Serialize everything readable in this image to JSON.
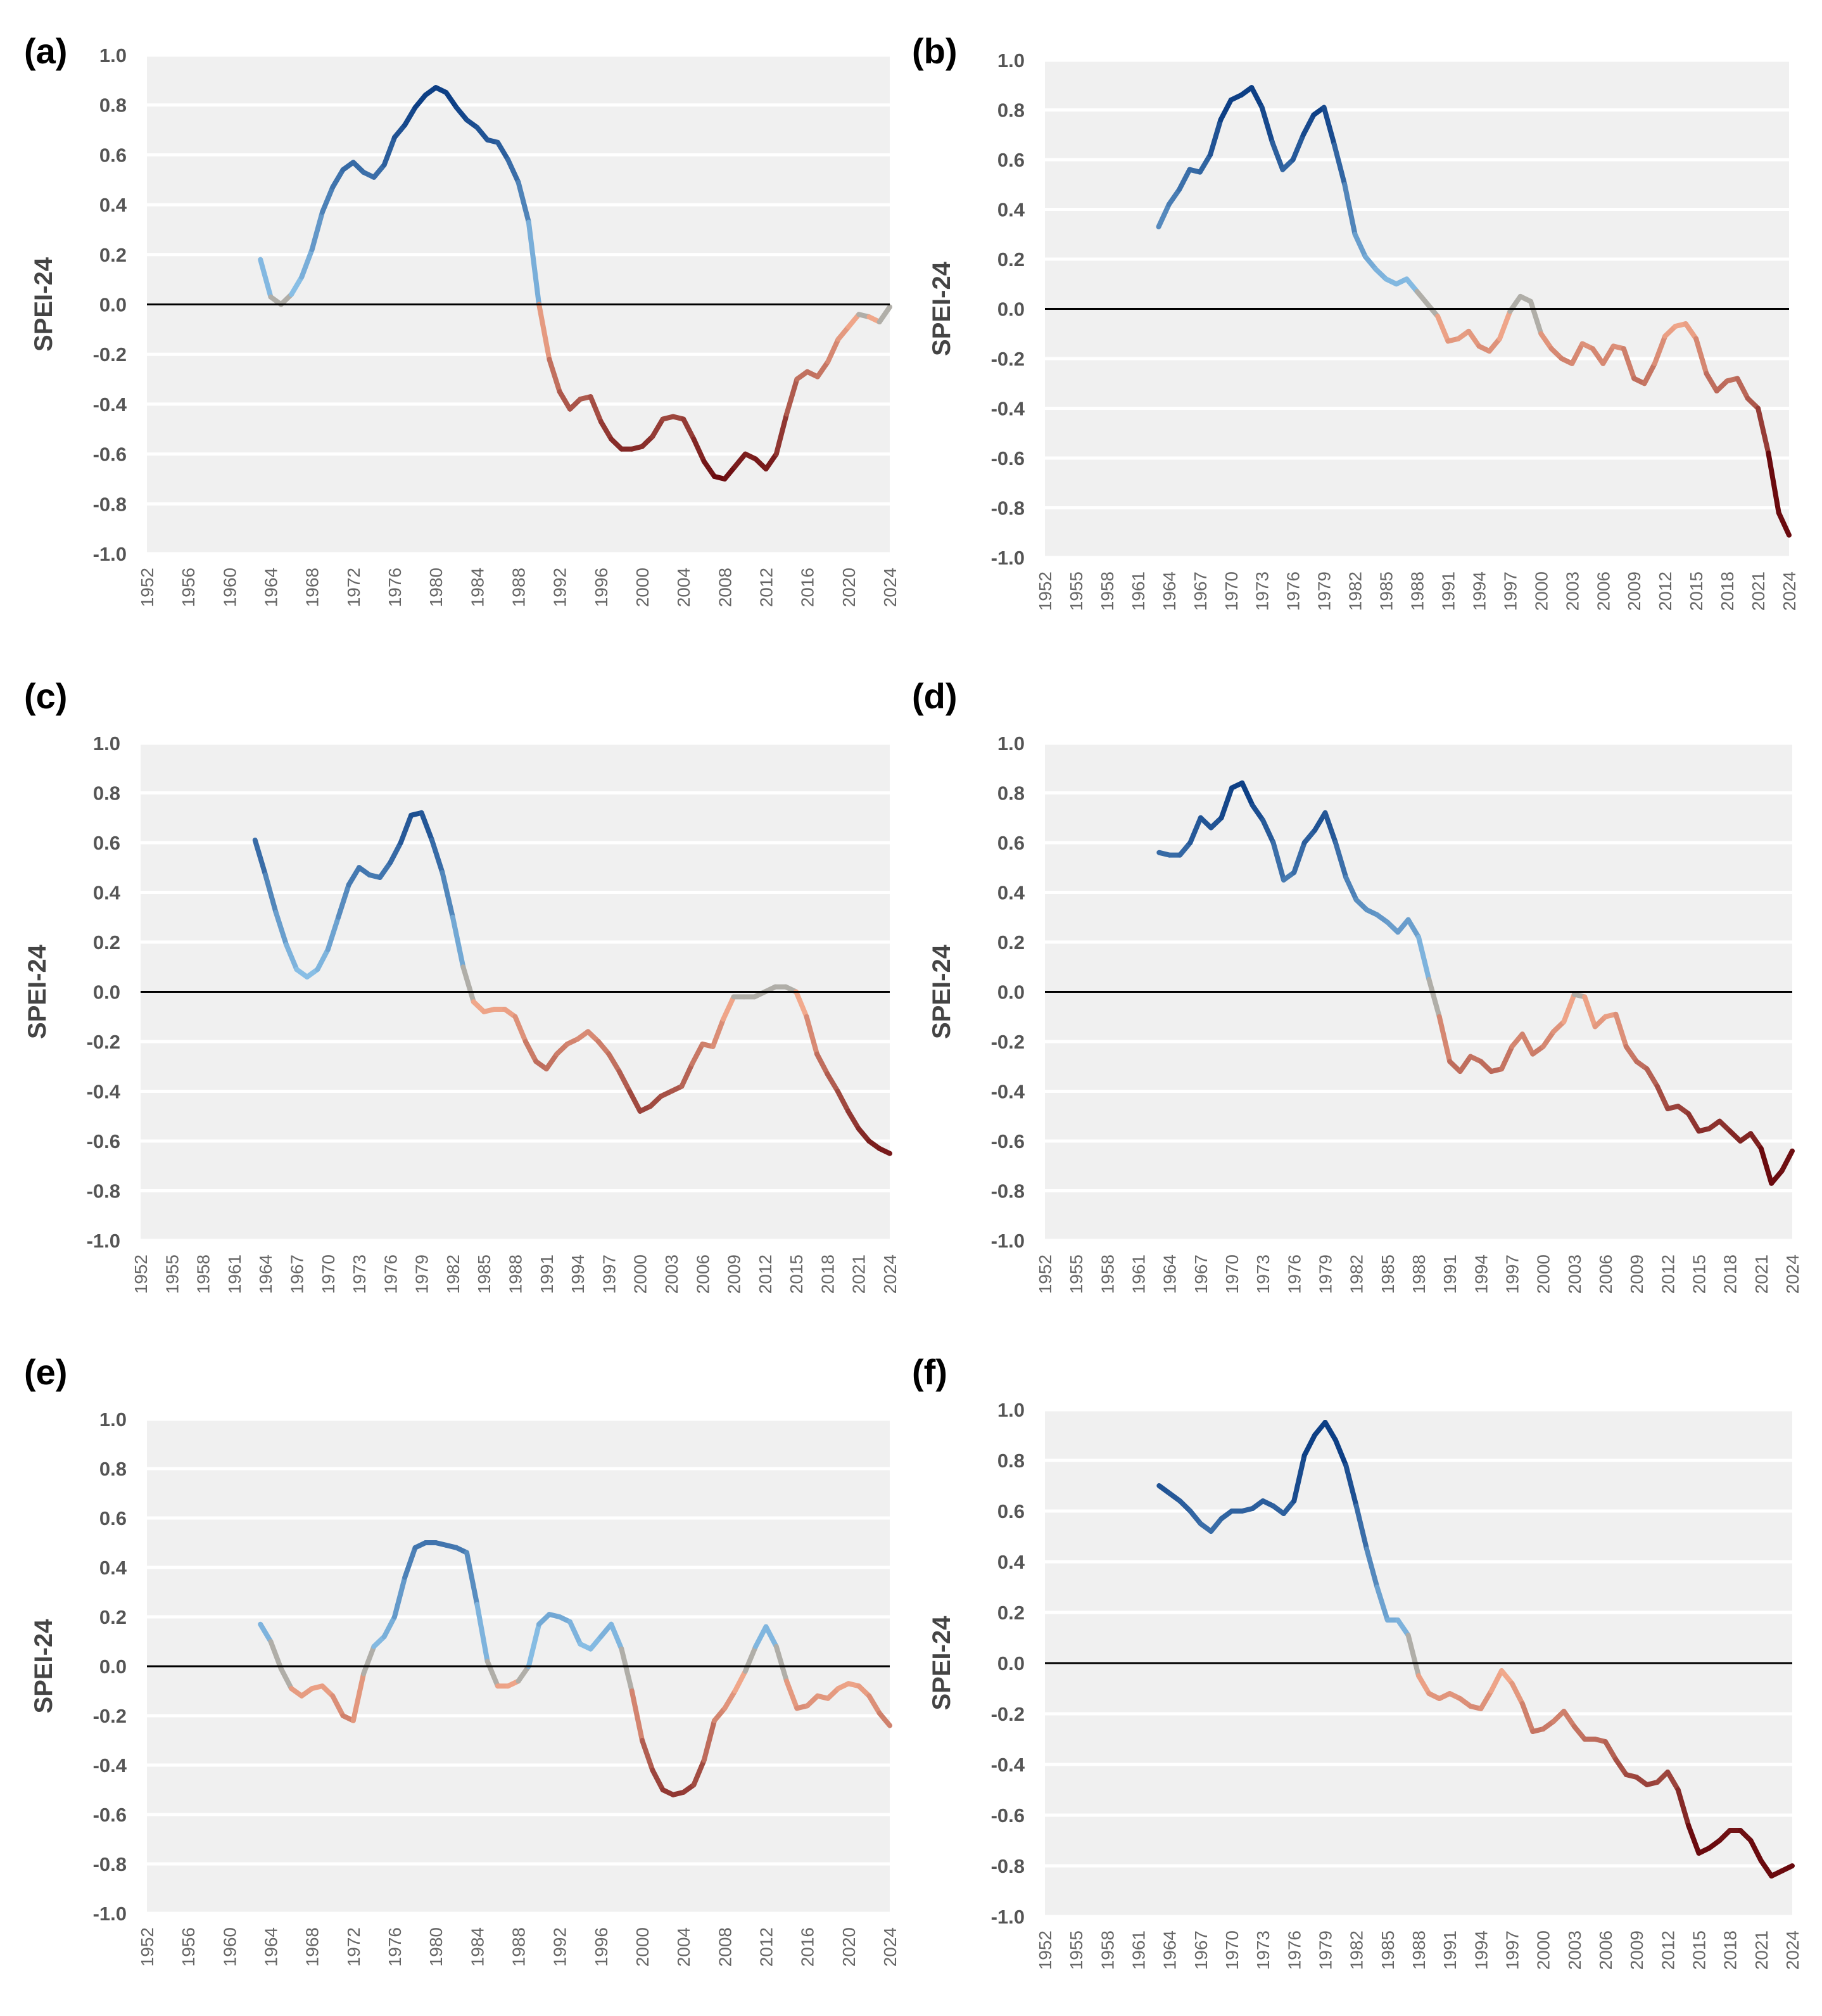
{
  "figure": {
    "panels": [
      {
        "label": "(a)",
        "ylabel": "SPEI-24"
      },
      {
        "label": "(b)",
        "ylabel": "SPEI-24"
      },
      {
        "label": "(c)",
        "ylabel": "SPEI-24"
      },
      {
        "label": "(d)",
        "ylabel": "SPEI-24"
      },
      {
        "label": "(e)",
        "ylabel": "SPEI-24"
      },
      {
        "label": "(f)",
        "ylabel": "SPEI-24"
      }
    ]
  },
  "colors": {
    "background": "#f0f0f0",
    "gridline": "#ffffff",
    "zero_line": "#000000",
    "wet_dark": "#0d3f85",
    "wet_light": "#8cc2e8",
    "neutral": "#b0aea8",
    "dry_light": "#f2a98c",
    "dry_dark": "#6a0a0e"
  },
  "chart_data": [
    {
      "type": "line",
      "panel": "(a)",
      "ylabel": "SPEI-24",
      "ylim": [
        -1.0,
        1.0
      ],
      "yticks": [
        "1.0",
        "0.8",
        "0.6",
        "0.4",
        "0.2",
        "0.0",
        "-0.2",
        "-0.4",
        "-0.6",
        "-0.8",
        "-1.0"
      ],
      "xlim": [
        1952,
        2024
      ],
      "xticks": [
        "1952",
        "1956",
        "1960",
        "1964",
        "1968",
        "1972",
        "1976",
        "1980",
        "1984",
        "1988",
        "1992",
        "1996",
        "2000",
        "2004",
        "2008",
        "2012",
        "2016",
        "2020",
        "2024"
      ],
      "grid": true,
      "x": [
        1963,
        1964,
        1965,
        1966,
        1967,
        1968,
        1969,
        1970,
        1971,
        1972,
        1973,
        1974,
        1975,
        1976,
        1977,
        1978,
        1979,
        1980,
        1981,
        1982,
        1983,
        1984,
        1985,
        1986,
        1987,
        1988,
        1989,
        1990,
        1991,
        1992,
        1993,
        1994,
        1995,
        1996,
        1997,
        1998,
        1999,
        2000,
        2001,
        2002,
        2003,
        2004,
        2005,
        2006,
        2007,
        2008,
        2009,
        2010,
        2011,
        2012,
        2013,
        2014,
        2015,
        2016,
        2017,
        2018,
        2019,
        2020,
        2021,
        2022,
        2023,
        2024
      ],
      "y": [
        0.18,
        0.03,
        0.0,
        0.04,
        0.11,
        0.22,
        0.37,
        0.47,
        0.54,
        0.57,
        0.53,
        0.51,
        0.56,
        0.67,
        0.72,
        0.79,
        0.84,
        0.87,
        0.85,
        0.79,
        0.74,
        0.71,
        0.66,
        0.65,
        0.58,
        0.49,
        0.33,
        0.0,
        -0.22,
        -0.35,
        -0.42,
        -0.38,
        -0.37,
        -0.47,
        -0.54,
        -0.58,
        -0.58,
        -0.57,
        -0.53,
        -0.46,
        -0.45,
        -0.46,
        -0.54,
        -0.63,
        -0.69,
        -0.7,
        -0.65,
        -0.6,
        -0.62,
        -0.66,
        -0.6,
        -0.44,
        -0.3,
        -0.27,
        -0.29,
        -0.23,
        -0.14,
        -0.09,
        -0.04,
        -0.05,
        -0.07,
        -0.01
      ]
    },
    {
      "type": "line",
      "panel": "(b)",
      "ylabel": "SPEI-24",
      "ylim": [
        -1.0,
        1.0
      ],
      "yticks": [
        "1.0",
        "0.8",
        "0.6",
        "0.4",
        "0.2",
        "0.0",
        "-0.2",
        "-0.4",
        "-0.6",
        "-0.8",
        "-1.0"
      ],
      "xlim": [
        1952,
        2024
      ],
      "xticks": [
        "1952",
        "1955",
        "1958",
        "1961",
        "1964",
        "1967",
        "1970",
        "1973",
        "1976",
        "1979",
        "1982",
        "1985",
        "1988",
        "1991",
        "1994",
        "1997",
        "2000",
        "2003",
        "2006",
        "2009",
        "2012",
        "2015",
        "2018",
        "2021",
        "2024"
      ],
      "grid": true,
      "x": [
        1963,
        1964,
        1965,
        1966,
        1967,
        1968,
        1969,
        1970,
        1971,
        1972,
        1973,
        1974,
        1975,
        1976,
        1977,
        1978,
        1979,
        1980,
        1981,
        1982,
        1983,
        1984,
        1985,
        1986,
        1987,
        1988,
        1989,
        1990,
        1991,
        1992,
        1993,
        1994,
        1995,
        1996,
        1997,
        1998,
        1999,
        2000,
        2001,
        2002,
        2003,
        2004,
        2005,
        2006,
        2007,
        2008,
        2009,
        2010,
        2011,
        2012,
        2013,
        2014,
        2015,
        2016,
        2017,
        2018,
        2019,
        2020,
        2021,
        2022,
        2023,
        2024
      ],
      "y": [
        0.33,
        0.42,
        0.48,
        0.56,
        0.55,
        0.62,
        0.76,
        0.84,
        0.86,
        0.89,
        0.81,
        0.67,
        0.56,
        0.6,
        0.7,
        0.78,
        0.81,
        0.66,
        0.5,
        0.3,
        0.21,
        0.16,
        0.12,
        0.1,
        0.12,
        0.07,
        0.02,
        -0.03,
        -0.13,
        -0.12,
        -0.09,
        -0.15,
        -0.17,
        -0.12,
        -0.01,
        0.05,
        0.03,
        -0.1,
        -0.16,
        -0.2,
        -0.22,
        -0.14,
        -0.16,
        -0.22,
        -0.15,
        -0.16,
        -0.28,
        -0.3,
        -0.22,
        -0.11,
        -0.07,
        -0.06,
        -0.12,
        -0.26,
        -0.33,
        -0.29,
        -0.28,
        -0.36,
        -0.4,
        -0.58,
        -0.82,
        -0.91
      ]
    },
    {
      "type": "line",
      "panel": "(c)",
      "ylabel": "SPEI-24",
      "ylim": [
        -1.0,
        1.0
      ],
      "yticks": [
        "1.0",
        "0.8",
        "0.6",
        "0.4",
        "0.2",
        "0.0",
        "-0.2",
        "-0.4",
        "-0.6",
        "-0.8",
        "-1.0"
      ],
      "xlim": [
        1952,
        2024
      ],
      "xticks": [
        "1952",
        "1955",
        "1958",
        "1961",
        "1964",
        "1967",
        "1970",
        "1973",
        "1976",
        "1979",
        "1982",
        "1985",
        "1988",
        "1991",
        "1994",
        "1997",
        "2000",
        "2003",
        "2006",
        "2009",
        "2012",
        "2015",
        "2018",
        "2021",
        "2024"
      ],
      "grid": true,
      "x": [
        1963,
        1964,
        1965,
        1966,
        1967,
        1968,
        1969,
        1970,
        1971,
        1972,
        1973,
        1974,
        1975,
        1976,
        1977,
        1978,
        1979,
        1980,
        1981,
        1982,
        1983,
        1984,
        1985,
        1986,
        1987,
        1988,
        1989,
        1990,
        1991,
        1992,
        1993,
        1994,
        1995,
        1996,
        1997,
        1998,
        1999,
        2000,
        2001,
        2002,
        2003,
        2004,
        2005,
        2006,
        2007,
        2008,
        2009,
        2010,
        2011,
        2012,
        2013,
        2014,
        2015,
        2016,
        2017,
        2018,
        2019,
        2020,
        2021,
        2022,
        2023,
        2024
      ],
      "y": [
        0.61,
        0.47,
        0.32,
        0.19,
        0.09,
        0.06,
        0.09,
        0.17,
        0.3,
        0.43,
        0.5,
        0.47,
        0.46,
        0.52,
        0.6,
        0.71,
        0.72,
        0.61,
        0.48,
        0.3,
        0.1,
        -0.04,
        -0.08,
        -0.07,
        -0.07,
        -0.1,
        -0.2,
        -0.28,
        -0.31,
        -0.25,
        -0.21,
        -0.19,
        -0.16,
        -0.2,
        -0.25,
        -0.32,
        -0.4,
        -0.48,
        -0.46,
        -0.42,
        -0.4,
        -0.38,
        -0.29,
        -0.21,
        -0.22,
        -0.11,
        -0.02,
        -0.02,
        -0.02,
        0.0,
        0.02,
        0.02,
        0.0,
        -0.1,
        -0.25,
        -0.33,
        -0.4,
        -0.48,
        -0.55,
        -0.6,
        -0.63,
        -0.65
      ]
    },
    {
      "type": "line",
      "panel": "(d)",
      "ylabel": "SPEI-24",
      "ylim": [
        -1.0,
        1.0
      ],
      "yticks": [
        "1.0",
        "0.8",
        "0.6",
        "0.4",
        "0.2",
        "0.0",
        "-0.2",
        "-0.4",
        "-0.6",
        "-0.8",
        "-1.0"
      ],
      "xlim": [
        1952,
        2024
      ],
      "xticks": [
        "1952",
        "1955",
        "1958",
        "1961",
        "1964",
        "1967",
        "1970",
        "1973",
        "1976",
        "1979",
        "1982",
        "1985",
        "1988",
        "1991",
        "1994",
        "1997",
        "2000",
        "2003",
        "2006",
        "2009",
        "2012",
        "2015",
        "2018",
        "2021",
        "2024"
      ],
      "grid": true,
      "x": [
        1963,
        1964,
        1965,
        1966,
        1967,
        1968,
        1969,
        1970,
        1971,
        1972,
        1973,
        1974,
        1975,
        1976,
        1977,
        1978,
        1979,
        1980,
        1981,
        1982,
        1983,
        1984,
        1985,
        1986,
        1987,
        1988,
        1989,
        1990,
        1991,
        1992,
        1993,
        1994,
        1995,
        1996,
        1997,
        1998,
        1999,
        2000,
        2001,
        2002,
        2003,
        2004,
        2005,
        2006,
        2007,
        2008,
        2009,
        2010,
        2011,
        2012,
        2013,
        2014,
        2015,
        2016,
        2017,
        2018,
        2019,
        2020,
        2021,
        2022,
        2023,
        2024
      ],
      "y": [
        0.56,
        0.55,
        0.55,
        0.6,
        0.7,
        0.66,
        0.7,
        0.82,
        0.84,
        0.75,
        0.69,
        0.6,
        0.45,
        0.48,
        0.6,
        0.65,
        0.72,
        0.6,
        0.46,
        0.37,
        0.33,
        0.31,
        0.28,
        0.24,
        0.29,
        0.22,
        0.05,
        -0.1,
        -0.28,
        -0.32,
        -0.26,
        -0.28,
        -0.32,
        -0.31,
        -0.22,
        -0.17,
        -0.25,
        -0.22,
        -0.16,
        -0.12,
        -0.01,
        -0.02,
        -0.14,
        -0.1,
        -0.09,
        -0.22,
        -0.28,
        -0.31,
        -0.38,
        -0.47,
        -0.46,
        -0.49,
        -0.56,
        -0.55,
        -0.52,
        -0.56,
        -0.6,
        -0.57,
        -0.63,
        -0.77,
        -0.72,
        -0.64
      ]
    },
    {
      "type": "line",
      "panel": "(e)",
      "ylabel": "SPEI-24",
      "ylim": [
        -1.0,
        1.0
      ],
      "yticks": [
        "1.0",
        "0.8",
        "0.6",
        "0.4",
        "0.2",
        "0.0",
        "-0.2",
        "-0.4",
        "-0.6",
        "-0.8",
        "-1.0"
      ],
      "xlim": [
        1952,
        2024
      ],
      "xticks": [
        "1952",
        "1956",
        "1960",
        "1964",
        "1968",
        "1972",
        "1976",
        "1980",
        "1984",
        "1988",
        "1992",
        "1996",
        "2000",
        "2004",
        "2008",
        "2012",
        "2016",
        "2020",
        "2024"
      ],
      "grid": true,
      "x": [
        1963,
        1964,
        1965,
        1966,
        1967,
        1968,
        1969,
        1970,
        1971,
        1972,
        1973,
        1974,
        1975,
        1976,
        1977,
        1978,
        1979,
        1980,
        1981,
        1982,
        1983,
        1984,
        1985,
        1986,
        1987,
        1988,
        1989,
        1990,
        1991,
        1992,
        1993,
        1994,
        1995,
        1996,
        1997,
        1998,
        1999,
        2000,
        2001,
        2002,
        2003,
        2004,
        2005,
        2006,
        2007,
        2008,
        2009,
        2010,
        2011,
        2012,
        2013,
        2014,
        2015,
        2016,
        2017,
        2018,
        2019,
        2020,
        2021,
        2022,
        2023,
        2024
      ],
      "y": [
        0.17,
        0.1,
        -0.01,
        -0.09,
        -0.12,
        -0.09,
        -0.08,
        -0.12,
        -0.2,
        -0.22,
        -0.03,
        0.08,
        0.12,
        0.2,
        0.36,
        0.48,
        0.5,
        0.5,
        0.49,
        0.48,
        0.46,
        0.25,
        0.02,
        -0.08,
        -0.08,
        -0.06,
        0.0,
        0.17,
        0.21,
        0.2,
        0.18,
        0.09,
        0.07,
        0.12,
        0.17,
        0.07,
        -0.1,
        -0.3,
        -0.42,
        -0.5,
        -0.52,
        -0.51,
        -0.48,
        -0.38,
        -0.22,
        -0.17,
        -0.1,
        -0.02,
        0.08,
        0.16,
        0.08,
        -0.06,
        -0.17,
        -0.16,
        -0.12,
        -0.13,
        -0.09,
        -0.07,
        -0.08,
        -0.12,
        -0.19,
        -0.24
      ]
    },
    {
      "type": "line",
      "panel": "(f)",
      "ylabel": "SPEI-24",
      "ylim": [
        -1.0,
        1.0
      ],
      "yticks": [
        "1.0",
        "0.8",
        "0.6",
        "0.4",
        "0.2",
        "0.0",
        "-0.2",
        "-0.4",
        "-0.6",
        "-0.8",
        "-1.0"
      ],
      "xlim": [
        1952,
        2024
      ],
      "xticks": [
        "1952",
        "1955",
        "1958",
        "1961",
        "1964",
        "1967",
        "1970",
        "1973",
        "1976",
        "1979",
        "1982",
        "1985",
        "1988",
        "1991",
        "1994",
        "1997",
        "2000",
        "2003",
        "2006",
        "2009",
        "2012",
        "2015",
        "2018",
        "2021",
        "2024"
      ],
      "grid": true,
      "x": [
        1963,
        1964,
        1965,
        1966,
        1967,
        1968,
        1969,
        1970,
        1971,
        1972,
        1973,
        1974,
        1975,
        1976,
        1977,
        1978,
        1979,
        1980,
        1981,
        1982,
        1983,
        1984,
        1985,
        1986,
        1987,
        1988,
        1989,
        1990,
        1991,
        1992,
        1993,
        1994,
        1995,
        1996,
        1997,
        1998,
        1999,
        2000,
        2001,
        2002,
        2003,
        2004,
        2005,
        2006,
        2007,
        2008,
        2009,
        2010,
        2011,
        2012,
        2013,
        2014,
        2015,
        2016,
        2017,
        2018,
        2019,
        2020,
        2021,
        2022,
        2023,
        2024
      ],
      "y": [
        0.7,
        0.67,
        0.64,
        0.6,
        0.55,
        0.52,
        0.57,
        0.6,
        0.6,
        0.61,
        0.64,
        0.62,
        0.59,
        0.64,
        0.82,
        0.9,
        0.95,
        0.88,
        0.78,
        0.62,
        0.45,
        0.3,
        0.17,
        0.17,
        0.11,
        -0.05,
        -0.12,
        -0.14,
        -0.12,
        -0.14,
        -0.17,
        -0.18,
        -0.11,
        -0.03,
        -0.08,
        -0.16,
        -0.27,
        -0.26,
        -0.23,
        -0.19,
        -0.25,
        -0.3,
        -0.3,
        -0.31,
        -0.38,
        -0.44,
        -0.45,
        -0.48,
        -0.47,
        -0.43,
        -0.5,
        -0.64,
        -0.75,
        -0.73,
        -0.7,
        -0.66,
        -0.66,
        -0.7,
        -0.78,
        -0.84,
        -0.82,
        -0.8
      ]
    }
  ]
}
